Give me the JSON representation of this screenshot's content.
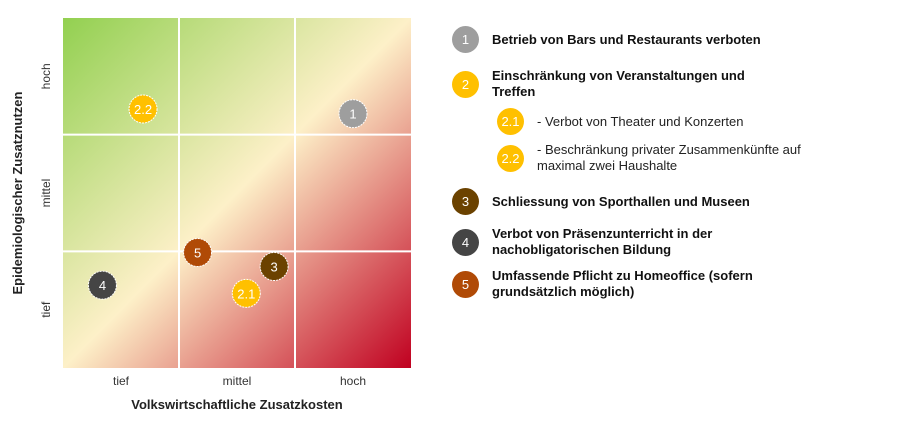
{
  "chart_data": {
    "type": "scatter",
    "xlabel": "Volkswirtschaftliche Zusatzkosten",
    "ylabel": "Epidemiologischer Zusatznutzen",
    "x_ticks": [
      "tief",
      "mittel",
      "hoch"
    ],
    "y_ticks": [
      "tief",
      "mittel",
      "hoch"
    ],
    "xlim": [
      0,
      3
    ],
    "ylim": [
      0,
      3
    ],
    "grid": true,
    "background": {
      "top_left": "#92d050",
      "diagonal": "#fdf0c8",
      "bottom_right": "#c00020"
    },
    "points": [
      {
        "label": "1",
        "x": 2.5,
        "y": 2.18,
        "color": "#9e9e9e"
      },
      {
        "label": "2.1",
        "x": 1.58,
        "y": 0.64,
        "color": "#ffc000"
      },
      {
        "label": "2.2",
        "x": 0.69,
        "y": 2.22,
        "color": "#ffc000"
      },
      {
        "label": "3",
        "x": 1.82,
        "y": 0.87,
        "color": "#6b4200"
      },
      {
        "label": "4",
        "x": 0.34,
        "y": 0.71,
        "color": "#454545"
      },
      {
        "label": "5",
        "x": 1.16,
        "y": 0.99,
        "color": "#b04a06"
      }
    ]
  },
  "legend": [
    {
      "num": "1",
      "text": "Betrieb von Bars und Restaurants verboten",
      "color": "#9e9e9e",
      "sub": false
    },
    {
      "num": "2",
      "text": "Einschränkung von Veranstaltungen und Treffen",
      "color": "#ffc000",
      "sub": false
    },
    {
      "num": "2.1",
      "text": "- Verbot von Theater und Konzerten",
      "color": "#ffc000",
      "sub": true
    },
    {
      "num": "2.2",
      "text": "- Beschränkung privater Zusammenkünfte auf maximal zwei Haushalte",
      "color": "#ffc000",
      "sub": true
    },
    {
      "num": "3",
      "text": "Schliessung von Sporthallen und Museen",
      "color": "#6b4200",
      "sub": false
    },
    {
      "num": "4",
      "text": "Verbot von Präsenzunterricht in der nachobligatorischen Bildung",
      "color": "#454545",
      "sub": false
    },
    {
      "num": "5",
      "text": "Umfassende Pflicht zu Homeoffice (sofern grundsätzlich möglich)",
      "color": "#b04a06",
      "sub": false
    }
  ]
}
